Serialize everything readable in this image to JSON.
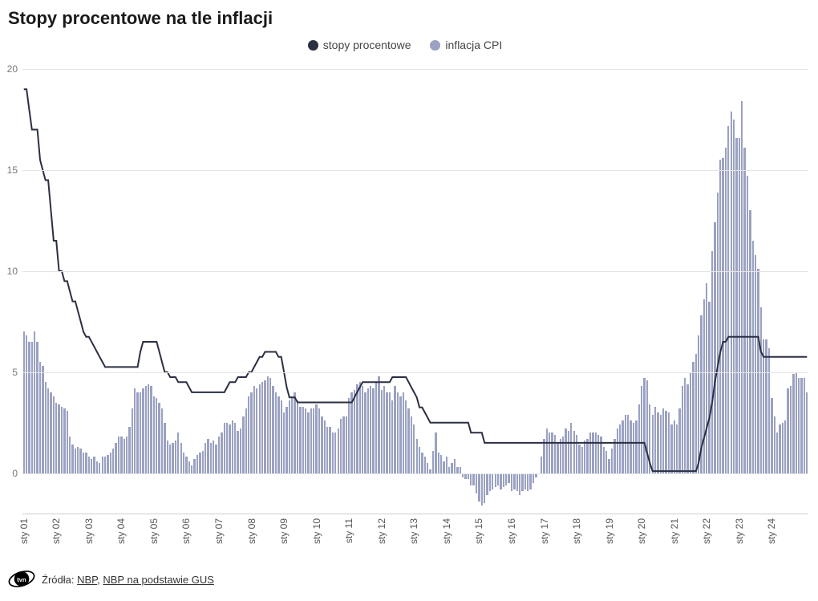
{
  "title": "Stopy procentowe na tle inflacji",
  "legend": [
    {
      "label": "stopy procentowe",
      "color": "#2b2f42"
    },
    {
      "label": "inflacja CPI",
      "color": "#9aa1c2"
    }
  ],
  "footer": {
    "prefix": "Źródła: ",
    "links": [
      {
        "label": "NBP"
      },
      {
        "label": "NBP na podstawie GUS"
      }
    ],
    "separator": ", "
  },
  "chart": {
    "type": "line+bar",
    "title_fontsize": 22,
    "label_fontsize": 12,
    "legend_fontsize": 14,
    "background_color": "#ffffff",
    "grid_color": "#e5e5e5",
    "axis_line_color": "#cfcfcf",
    "bar_color": "#9aa1c2",
    "line_color": "#2b2f42",
    "line_width": 2,
    "y": {
      "min": -2,
      "max": 20,
      "ticks": [
        0,
        5,
        10,
        15,
        20
      ]
    },
    "x": {
      "labels": [
        "sty 01",
        "sty 02",
        "sty 03",
        "sty 04",
        "sty 05",
        "sty 06",
        "sty 07",
        "sty 08",
        "sty 09",
        "sty 10",
        "sty 11",
        "sty 12",
        "sty 13",
        "sty 14",
        "sty 15",
        "sty 16",
        "sty 17",
        "sty 18",
        "sty 19",
        "sty 20",
        "sty 21",
        "sty 22",
        "sty 23",
        "sty 24"
      ]
    },
    "n_months": 290,
    "inflacja_cpi": [
      7.0,
      6.8,
      6.5,
      6.5,
      7.0,
      6.5,
      5.5,
      5.3,
      4.5,
      4.2,
      4.0,
      3.8,
      3.5,
      3.4,
      3.3,
      3.2,
      3.1,
      1.8,
      1.4,
      1.2,
      1.3,
      1.2,
      1.0,
      1.0,
      0.8,
      0.7,
      0.8,
      0.6,
      0.5,
      0.8,
      0.8,
      0.9,
      1.0,
      1.2,
      1.5,
      1.8,
      1.8,
      1.7,
      1.8,
      2.3,
      3.2,
      4.2,
      4.0,
      4.0,
      4.2,
      4.3,
      4.4,
      4.3,
      3.8,
      3.7,
      3.5,
      3.2,
      2.5,
      1.6,
      1.4,
      1.5,
      1.6,
      2.0,
      1.5,
      1.0,
      0.8,
      0.6,
      0.4,
      0.7,
      0.9,
      1.0,
      1.1,
      1.5,
      1.7,
      1.5,
      1.6,
      1.4,
      1.8,
      2.0,
      2.5,
      2.5,
      2.4,
      2.6,
      2.5,
      2.1,
      2.2,
      2.8,
      3.2,
      3.8,
      4.0,
      4.3,
      4.2,
      4.4,
      4.5,
      4.6,
      4.8,
      4.7,
      4.3,
      4.0,
      3.8,
      3.6,
      3.0,
      3.3,
      3.6,
      3.8,
      4.0,
      3.6,
      3.3,
      3.3,
      3.2,
      3.0,
      3.2,
      3.2,
      3.4,
      3.2,
      2.8,
      2.6,
      2.3,
      2.3,
      2.0,
      2.0,
      2.2,
      2.7,
      2.8,
      2.8,
      3.7,
      4.0,
      4.1,
      4.4,
      4.5,
      4.3,
      4.0,
      4.2,
      4.3,
      4.2,
      4.5,
      4.8,
      4.1,
      4.3,
      4.0,
      4.0,
      3.6,
      4.3,
      4.0,
      3.8,
      4.0,
      3.6,
      3.2,
      2.8,
      2.4,
      1.7,
      1.3,
      1.0,
      0.8,
      0.5,
      0.2,
      1.1,
      2.0,
      1.0,
      0.9,
      0.6,
      0.8,
      0.3,
      0.5,
      0.7,
      0.3,
      0.3,
      -0.2,
      -0.3,
      -0.3,
      -0.6,
      -0.6,
      -1.0,
      -1.4,
      -1.6,
      -1.5,
      -1.1,
      -0.9,
      -0.8,
      -0.7,
      -0.6,
      -0.8,
      -0.7,
      -0.6,
      -0.5,
      -0.9,
      -0.8,
      -0.9,
      -1.1,
      -0.9,
      -0.8,
      -0.9,
      -0.8,
      -0.5,
      -0.2,
      0.0,
      0.8,
      1.7,
      2.2,
      2.0,
      2.0,
      1.9,
      1.5,
      1.7,
      1.8,
      2.2,
      2.1,
      2.5,
      2.1,
      1.9,
      1.4,
      1.3,
      1.6,
      1.7,
      2.0,
      2.0,
      2.0,
      1.9,
      1.8,
      1.3,
      1.1,
      0.7,
      1.2,
      1.7,
      2.2,
      2.4,
      2.6,
      2.9,
      2.9,
      2.6,
      2.5,
      2.6,
      3.4,
      4.3,
      4.7,
      4.6,
      3.4,
      2.9,
      3.3,
      3.0,
      2.9,
      3.2,
      3.1,
      3.0,
      2.4,
      2.6,
      2.4,
      3.2,
      4.3,
      4.7,
      4.4,
      5.0,
      5.5,
      5.9,
      6.8,
      7.8,
      8.6,
      9.4,
      8.5,
      11.0,
      12.4,
      13.9,
      15.5,
      15.6,
      16.1,
      17.2,
      17.9,
      17.5,
      16.6,
      16.6,
      18.4,
      16.1,
      14.7,
      13.0,
      11.5,
      10.8,
      10.1,
      8.2,
      6.6,
      6.6,
      6.2,
      3.7,
      2.8,
      2.0,
      2.4,
      2.5,
      2.6,
      4.2,
      4.3,
      4.9,
      5.0,
      4.7,
      4.7,
      4.7,
      4.0
    ],
    "stopy_procentowe": [
      19.0,
      19.0,
      18.0,
      17.0,
      17.0,
      17.0,
      15.5,
      15.0,
      14.5,
      14.5,
      13.0,
      11.5,
      11.5,
      10.0,
      10.0,
      9.5,
      9.5,
      9.0,
      8.5,
      8.5,
      8.0,
      7.5,
      7.0,
      6.75,
      6.75,
      6.5,
      6.25,
      6.0,
      5.75,
      5.5,
      5.25,
      5.25,
      5.25,
      5.25,
      5.25,
      5.25,
      5.25,
      5.25,
      5.25,
      5.25,
      5.25,
      5.25,
      5.25,
      6.0,
      6.5,
      6.5,
      6.5,
      6.5,
      6.5,
      6.5,
      6.0,
      5.5,
      5.0,
      5.0,
      4.75,
      4.75,
      4.75,
      4.5,
      4.5,
      4.5,
      4.5,
      4.25,
      4.0,
      4.0,
      4.0,
      4.0,
      4.0,
      4.0,
      4.0,
      4.0,
      4.0,
      4.0,
      4.0,
      4.0,
      4.0,
      4.25,
      4.5,
      4.5,
      4.5,
      4.75,
      4.75,
      4.75,
      4.75,
      5.0,
      5.0,
      5.25,
      5.5,
      5.75,
      5.75,
      6.0,
      6.0,
      6.0,
      6.0,
      6.0,
      5.75,
      5.75,
      5.0,
      4.25,
      3.75,
      3.75,
      3.75,
      3.5,
      3.5,
      3.5,
      3.5,
      3.5,
      3.5,
      3.5,
      3.5,
      3.5,
      3.5,
      3.5,
      3.5,
      3.5,
      3.5,
      3.5,
      3.5,
      3.5,
      3.5,
      3.5,
      3.5,
      3.5,
      3.75,
      4.0,
      4.25,
      4.5,
      4.5,
      4.5,
      4.5,
      4.5,
      4.5,
      4.5,
      4.5,
      4.5,
      4.5,
      4.5,
      4.75,
      4.75,
      4.75,
      4.75,
      4.75,
      4.75,
      4.5,
      4.25,
      4.0,
      3.75,
      3.25,
      3.25,
      3.0,
      2.75,
      2.5,
      2.5,
      2.5,
      2.5,
      2.5,
      2.5,
      2.5,
      2.5,
      2.5,
      2.5,
      2.5,
      2.5,
      2.5,
      2.5,
      2.5,
      2.0,
      2.0,
      2.0,
      2.0,
      2.0,
      1.5,
      1.5,
      1.5,
      1.5,
      1.5,
      1.5,
      1.5,
      1.5,
      1.5,
      1.5,
      1.5,
      1.5,
      1.5,
      1.5,
      1.5,
      1.5,
      1.5,
      1.5,
      1.5,
      1.5,
      1.5,
      1.5,
      1.5,
      1.5,
      1.5,
      1.5,
      1.5,
      1.5,
      1.5,
      1.5,
      1.5,
      1.5,
      1.5,
      1.5,
      1.5,
      1.5,
      1.5,
      1.5,
      1.5,
      1.5,
      1.5,
      1.5,
      1.5,
      1.5,
      1.5,
      1.5,
      1.5,
      1.5,
      1.5,
      1.5,
      1.5,
      1.5,
      1.5,
      1.5,
      1.5,
      1.5,
      1.5,
      1.5,
      1.5,
      1.5,
      1.0,
      0.5,
      0.1,
      0.1,
      0.1,
      0.1,
      0.1,
      0.1,
      0.1,
      0.1,
      0.1,
      0.1,
      0.1,
      0.1,
      0.1,
      0.1,
      0.1,
      0.1,
      0.1,
      0.5,
      1.25,
      1.75,
      2.25,
      2.75,
      3.5,
      4.5,
      5.25,
      6.0,
      6.5,
      6.5,
      6.75,
      6.75,
      6.75,
      6.75,
      6.75,
      6.75,
      6.75,
      6.75,
      6.75,
      6.75,
      6.75,
      6.75,
      6.0,
      5.75,
      5.75,
      5.75,
      5.75,
      5.75,
      5.75,
      5.75,
      5.75,
      5.75,
      5.75,
      5.75,
      5.75,
      5.75,
      5.75,
      5.75,
      5.75,
      5.75
    ]
  }
}
